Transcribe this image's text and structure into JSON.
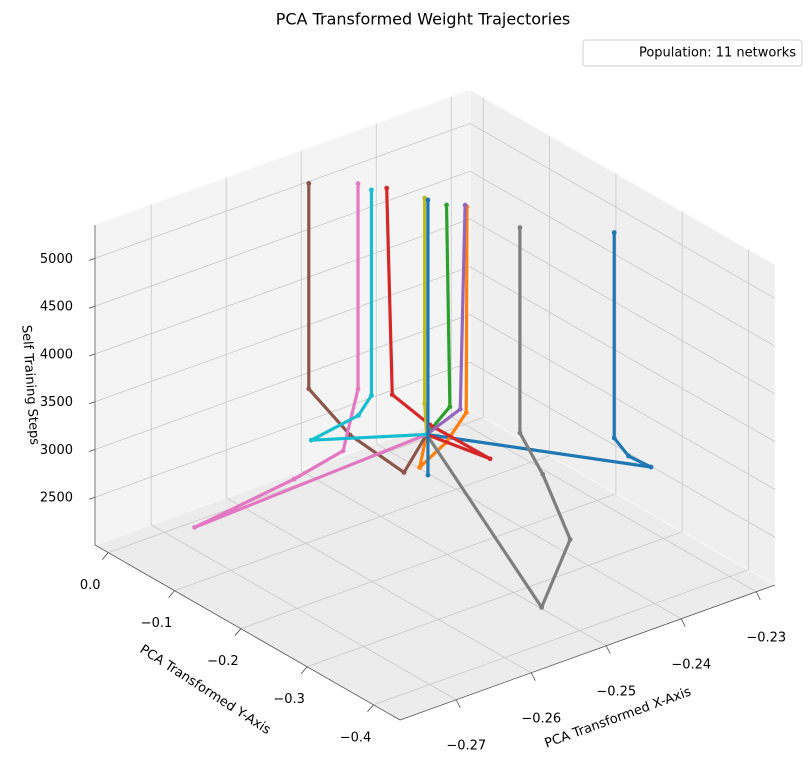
{
  "chart_data": {
    "type": "line3d",
    "title": "PCA Transformed Weight Trajectories",
    "xlabel": "PCA Transformed X-Axis",
    "ylabel": "PCA Transformed Y-Axis",
    "zlabel": "Self Training Steps",
    "legend": "Population: 11 networks",
    "legend_loc": "upper right",
    "grid": true,
    "xlim": [
      -0.2775,
      -0.2275
    ],
    "ylim": [
      -0.44,
      0.02
    ],
    "zlim": [
      2000,
      5350
    ],
    "xticks": [
      {
        "value": -0.27,
        "label": "−0.27"
      },
      {
        "value": -0.26,
        "label": "−0.26"
      },
      {
        "value": -0.25,
        "label": "−0.25"
      },
      {
        "value": -0.24,
        "label": "−0.24"
      },
      {
        "value": -0.23,
        "label": "−0.23"
      }
    ],
    "yticks": [
      {
        "value": 0,
        "label": "0.0"
      },
      {
        "value": -0.1,
        "label": "−0.1"
      },
      {
        "value": -0.2,
        "label": "−0.2"
      },
      {
        "value": -0.3,
        "label": "−0.3"
      },
      {
        "value": -0.4,
        "label": "−0.4"
      }
    ],
    "zticks": [
      2500,
      3000,
      3500,
      4000,
      4500,
      5000
    ],
    "series": [
      {
        "color": "#1f77b4",
        "x": [
          -0.24,
          -0.229,
          -0.232,
          -0.234,
          -0.234
        ],
        "y": [
          -0.056,
          -0.27,
          -0.27,
          -0.271,
          -0.271
        ],
        "z": [
          2400,
          2600,
          2800,
          3050,
          5200
        ]
      },
      {
        "color": "#ff7f0e",
        "x": [
          -0.24,
          -0.248,
          -0.245,
          -0.2425,
          -0.2424
        ],
        "y": [
          -0.056,
          -0.136,
          -0.142,
          -0.144,
          -0.144
        ],
        "z": [
          2400,
          2600,
          2800,
          3050,
          5200
        ]
      },
      {
        "color": "#2ca02c",
        "x": [
          -0.24,
          -0.243,
          -0.2438
        ],
        "y": [
          -0.056,
          -0.125,
          -0.129
        ],
        "z": [
          2400,
          3050,
          5200
        ]
      },
      {
        "color": "#d62728",
        "x": [
          -0.24,
          -0.241,
          -0.2445,
          -0.246,
          -0.2463
        ],
        "y": [
          -0.056,
          -0.163,
          -0.112,
          -0.072,
          -0.067
        ],
        "z": [
          2400,
          2600,
          2850,
          3050,
          5200
        ]
      },
      {
        "color": "#9467bd",
        "x": [
          -0.24,
          -0.2425,
          -0.2423
        ],
        "y": [
          -0.056,
          -0.135,
          -0.14
        ],
        "z": [
          2400,
          3050,
          5200
        ]
      },
      {
        "color": "#8c564b",
        "x": [
          -0.24,
          -0.25,
          -0.2525,
          -0.252,
          -0.252
        ],
        "y": [
          -0.056,
          -0.135,
          -0.082,
          -0.014,
          -0.014
        ],
        "z": [
          2400,
          2600,
          2850,
          3050,
          5200
        ]
      },
      {
        "color": "#e377c2",
        "x": [
          -0.24,
          -0.275,
          -0.262,
          -0.256,
          -0.248,
          -0.248
        ],
        "y": [
          -0.056,
          -0.102,
          -0.105,
          -0.111,
          -0.043,
          -0.043
        ],
        "z": [
          2400,
          2600,
          2750,
          2900,
          3050,
          5200
        ]
      },
      {
        "color": "#7f7f7f",
        "x": [
          -0.24,
          -0.258,
          -0.248,
          -0.243,
          -0.241,
          -0.241
        ],
        "y": [
          -0.056,
          -0.433,
          -0.363,
          -0.265,
          -0.208,
          -0.208
        ],
        "z": [
          2400,
          2600,
          2750,
          2900,
          3050,
          5200
        ]
      },
      {
        "color": "#bcbd22",
        "x": [
          -0.24,
          -0.2446,
          -0.2446
        ],
        "y": [
          -0.056,
          -0.105,
          -0.105
        ],
        "z": [
          2400,
          3050,
          5200
        ]
      },
      {
        "color": "#17becf",
        "x": [
          -0.24,
          -0.253,
          -0.249,
          -0.2478,
          -0.2478
        ],
        "y": [
          -0.056,
          -0.029,
          -0.055,
          -0.061,
          -0.061
        ],
        "z": [
          2400,
          2600,
          2850,
          3050,
          5200
        ]
      },
      {
        "color": "#1f77b4",
        "x": [
          -0.2446,
          -0.2446
        ],
        "y": [
          -0.11,
          -0.11
        ],
        "z": [
          2320,
          5200
        ]
      }
    ]
  }
}
